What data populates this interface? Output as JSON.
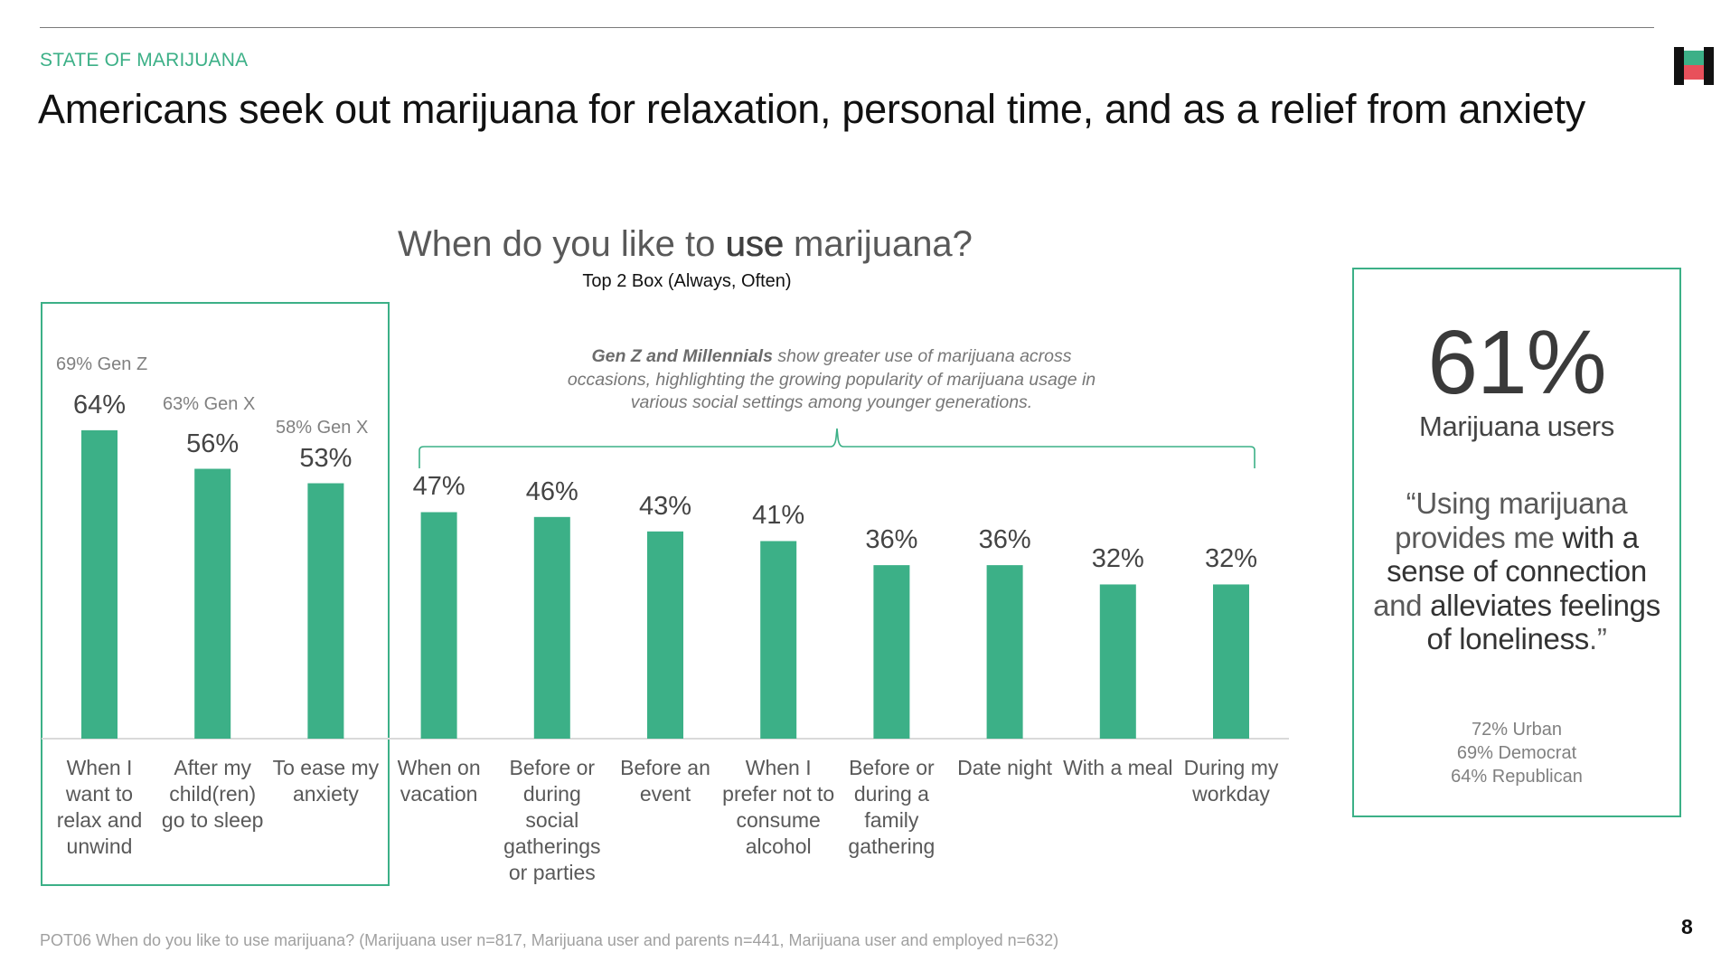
{
  "header": {
    "kicker": "STATE OF MARIJUANA",
    "title": "Americans seek out marijuana for relaxation, personal time, and as a relief from anxiety"
  },
  "brand": {
    "accent_color": "#3cb087",
    "logo_icon": "brand-logo-icon",
    "logo_colors": [
      "#111111",
      "#3cb087",
      "#e8505b"
    ]
  },
  "question": {
    "before": "When do you like to ",
    "emphasis": "use",
    "after": " marijuana?",
    "subtitle": "Top 2 Box (Always, Often)"
  },
  "annotation": {
    "strong": "Gen Z and Millennials",
    "rest": " show greater use of marijuana across occasions, highlighting the growing popularity of marijuana usage in various social settings among younger generations."
  },
  "chart_data": {
    "type": "bar",
    "title": "When do you like to use marijuana?",
    "subtitle": "Top 2 Box (Always, Often)",
    "categories": [
      "When I want to relax and unwind",
      "After my child(ren) go to sleep",
      "To ease my anxiety",
      "When on vacation",
      "Before or during social gatherings or parties",
      "Before an event",
      "When I prefer not to consume alcohol",
      "Before or during a family gathering",
      "Date night",
      "With a meal",
      "During my workday"
    ],
    "values": [
      64,
      56,
      53,
      47,
      46,
      43,
      41,
      36,
      36,
      32,
      32
    ],
    "value_labels": [
      "64%",
      "56%",
      "53%",
      "47%",
      "46%",
      "43%",
      "41%",
      "36%",
      "36%",
      "32%",
      "32%"
    ],
    "generation_notes": [
      "69% Gen Z",
      "63% Gen X",
      "58% Gen X"
    ],
    "ylim": [
      0,
      100
    ],
    "grid": false,
    "bar_color": "#3cb087"
  },
  "stat_card": {
    "big": "61%",
    "label": "Marijuana users",
    "quote_parts": [
      "“Using marijuana provides me ",
      "with a sense of connection",
      " and ",
      "alleviates feelings of loneliness",
      ".”"
    ],
    "demographics": [
      "72% Urban",
      "69% Democrat",
      "64% Republican"
    ]
  },
  "footer": {
    "note": "POT06 When do you like to use marijuana? (Marijuana user n=817, Marijuana user and parents n=441, Marijuana user and employed n=632)",
    "page_number": "8"
  }
}
